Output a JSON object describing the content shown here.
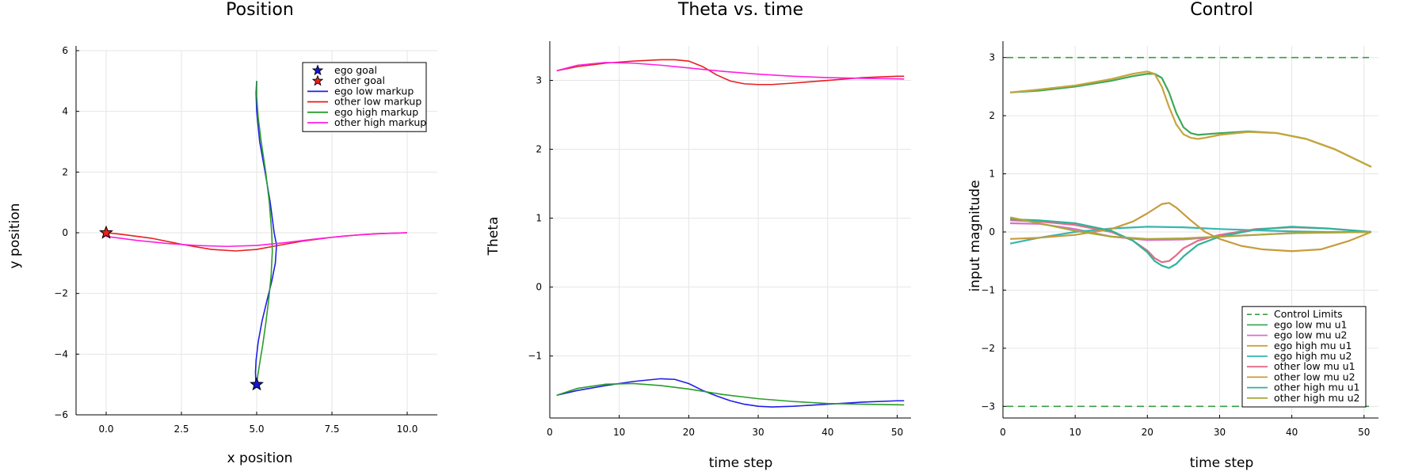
{
  "chart_data": [
    {
      "type": "line",
      "title": "Position",
      "xlabel": "x position",
      "ylabel": "y position",
      "xlim": [
        -1,
        11
      ],
      "ylim": [
        -6,
        6
      ],
      "xticks": [
        0.0,
        2.5,
        5.0,
        7.5,
        10.0
      ],
      "xtick_labels": [
        "0.0",
        "2.5",
        "5.0",
        "7.5",
        "10.0"
      ],
      "yticks": [
        -6,
        -4,
        -2,
        0,
        2,
        4,
        6
      ],
      "ytick_labels": [
        "−6",
        "−4",
        "−2",
        "0",
        "2",
        "4",
        "6"
      ],
      "grid": true,
      "legend_position": "top-right",
      "markers": [
        {
          "name": "ego goal",
          "x": 5.0,
          "y": -5.0,
          "color": "#1515d6",
          "shape": "star"
        },
        {
          "name": "other goal",
          "x": 0.0,
          "y": 0.0,
          "color": "#e8211b",
          "shape": "star"
        }
      ],
      "series": [
        {
          "name": "ego low markup",
          "color": "#1f1fe8",
          "x": [
            5.0,
            4.98,
            5.0,
            5.1,
            5.28,
            5.45,
            5.58,
            5.66,
            5.62,
            5.5,
            5.35,
            5.18,
            5.05,
            4.98,
            4.96,
            4.97,
            5.0
          ],
          "y": [
            5.0,
            4.6,
            4.0,
            3.0,
            2.0,
            1.0,
            0.0,
            -0.4,
            -1.0,
            -1.6,
            -2.2,
            -2.9,
            -3.6,
            -4.2,
            -4.6,
            -4.85,
            -5.0
          ]
        },
        {
          "name": "other low markup",
          "color": "#e81f1f",
          "x": [
            0.0,
            0.5,
            1.5,
            2.5,
            3.5,
            4.3,
            5.0,
            5.7,
            6.5,
            7.5,
            8.5,
            9.3,
            10.0
          ],
          "y": [
            0.0,
            -0.05,
            -0.18,
            -0.38,
            -0.55,
            -0.6,
            -0.55,
            -0.42,
            -0.28,
            -0.15,
            -0.06,
            -0.02,
            0.0
          ]
        },
        {
          "name": "ego high markup",
          "color": "#2a9d2a",
          "x": [
            5.0,
            5.0,
            5.05,
            5.15,
            5.3,
            5.42,
            5.5,
            5.52,
            5.48,
            5.4,
            5.3,
            5.2,
            5.1,
            5.03,
            5.0
          ],
          "y": [
            5.0,
            4.5,
            3.8,
            3.0,
            2.0,
            1.0,
            0.0,
            -0.6,
            -1.4,
            -2.2,
            -3.0,
            -3.7,
            -4.3,
            -4.75,
            -5.0
          ]
        },
        {
          "name": "other high markup",
          "color": "#ff1fe0",
          "x": [
            0.0,
            1.0,
            2.0,
            3.0,
            4.0,
            5.0,
            6.0,
            7.0,
            8.0,
            9.0,
            10.0
          ],
          "y": [
            -0.12,
            -0.25,
            -0.35,
            -0.42,
            -0.45,
            -0.42,
            -0.32,
            -0.2,
            -0.1,
            -0.03,
            0.0
          ]
        }
      ]
    },
    {
      "type": "line",
      "title": "Theta vs. time",
      "xlabel": "time step",
      "ylabel": "Theta",
      "xlim": [
        0,
        52
      ],
      "ylim": [
        -1.9,
        3.5
      ],
      "xticks": [
        0,
        10,
        20,
        30,
        40,
        50
      ],
      "xtick_labels": [
        "0",
        "10",
        "20",
        "30",
        "40",
        "50"
      ],
      "yticks": [
        -1,
        0,
        1,
        2,
        3
      ],
      "ytick_labels": [
        "−1",
        "0",
        "1",
        "2",
        "3"
      ],
      "grid": true,
      "series": [
        {
          "color": "#1f1fe8",
          "x": [
            1,
            4,
            8,
            12,
            16,
            18,
            20,
            22,
            24,
            26,
            28,
            30,
            32,
            35,
            40,
            45,
            50,
            51
          ],
          "y": [
            -1.57,
            -1.5,
            -1.43,
            -1.37,
            -1.33,
            -1.34,
            -1.4,
            -1.5,
            -1.58,
            -1.65,
            -1.7,
            -1.73,
            -1.74,
            -1.73,
            -1.7,
            -1.67,
            -1.65,
            -1.65
          ]
        },
        {
          "name": "",
          "color": "#2a9d2a",
          "x": [
            1,
            4,
            8,
            12,
            16,
            20,
            25,
            30,
            35,
            40,
            45,
            51
          ],
          "y": [
            -1.57,
            -1.47,
            -1.41,
            -1.4,
            -1.43,
            -1.48,
            -1.56,
            -1.62,
            -1.66,
            -1.69,
            -1.7,
            -1.71
          ]
        },
        {
          "color": "#e81f1f",
          "x": [
            1,
            4,
            8,
            12,
            16,
            18,
            20,
            22,
            24,
            26,
            28,
            30,
            32,
            35,
            40,
            45,
            50,
            51
          ],
          "y": [
            3.14,
            3.2,
            3.25,
            3.28,
            3.3,
            3.3,
            3.28,
            3.2,
            3.08,
            2.99,
            2.95,
            2.94,
            2.94,
            2.96,
            3.0,
            3.04,
            3.06,
            3.06
          ]
        },
        {
          "color": "#ff1fe0",
          "x": [
            1,
            4,
            8,
            12,
            16,
            20,
            25,
            30,
            35,
            40,
            45,
            51
          ],
          "y": [
            3.14,
            3.22,
            3.26,
            3.25,
            3.22,
            3.18,
            3.13,
            3.09,
            3.06,
            3.04,
            3.03,
            3.02
          ]
        }
      ]
    },
    {
      "type": "line",
      "title": "Control",
      "xlabel": "time step",
      "ylabel": "input magnitude",
      "xlim": [
        0,
        52
      ],
      "ylim": [
        -3.2,
        3.2
      ],
      "xticks": [
        0,
        10,
        20,
        30,
        40,
        50
      ],
      "xtick_labels": [
        "0",
        "10",
        "20",
        "30",
        "40",
        "50"
      ],
      "yticks": [
        -3,
        -2,
        -1,
        0,
        1,
        2,
        3
      ],
      "ytick_labels": [
        "−3",
        "−2",
        "−1",
        "0",
        "1",
        "2",
        "3"
      ],
      "grid": true,
      "legend_position": "bottom-right",
      "limits": {
        "name": "Control Limits",
        "color": "#3a9d48",
        "values": [
          3,
          -3
        ]
      },
      "series": [
        {
          "name": "ego low mu u1",
          "color": "#3ea85a",
          "x": [
            1,
            5,
            10,
            15,
            18,
            20,
            21,
            22,
            23,
            24,
            25,
            26,
            27,
            28,
            30,
            34,
            38,
            42,
            46,
            51
          ],
          "y": [
            2.4,
            2.43,
            2.5,
            2.6,
            2.68,
            2.72,
            2.72,
            2.65,
            2.4,
            2.05,
            1.8,
            1.7,
            1.67,
            1.68,
            1.7,
            1.73,
            1.7,
            1.6,
            1.42,
            1.12
          ]
        },
        {
          "name": "ego low mu u2",
          "color": "#d86fd2",
          "x": [
            1,
            5,
            10,
            15,
            20,
            25,
            30,
            35,
            40,
            45,
            51
          ],
          "y": [
            0.15,
            0.14,
            0.05,
            -0.08,
            -0.14,
            -0.13,
            -0.08,
            -0.05,
            -0.02,
            -0.01,
            0.0
          ]
        },
        {
          "name": "ego high mu u1",
          "color": "#c8a43c",
          "x": [
            1,
            5,
            10,
            15,
            18,
            20,
            21,
            22,
            23,
            24,
            25,
            26,
            27,
            28,
            30,
            34,
            38,
            42,
            46,
            51
          ],
          "y": [
            2.4,
            2.45,
            2.52,
            2.63,
            2.72,
            2.76,
            2.72,
            2.5,
            2.15,
            1.85,
            1.68,
            1.62,
            1.6,
            1.62,
            1.67,
            1.72,
            1.7,
            1.6,
            1.42,
            1.12
          ]
        },
        {
          "name": "ego high mu u2",
          "color": "#36b7b0",
          "x": [
            1,
            5,
            10,
            15,
            20,
            25,
            30,
            35,
            40,
            45,
            51
          ],
          "y": [
            -0.2,
            -0.1,
            0.0,
            0.06,
            0.09,
            0.08,
            0.05,
            0.03,
            0.01,
            0.0,
            0.0
          ]
        },
        {
          "name": "other low mu u1",
          "color": "#e26b8a",
          "x": [
            1,
            5,
            10,
            15,
            18,
            20,
            21,
            22,
            23,
            24,
            25,
            27,
            30,
            35,
            40,
            45,
            51
          ],
          "y": [
            0.2,
            0.18,
            0.12,
            0.0,
            -0.15,
            -0.32,
            -0.45,
            -0.52,
            -0.5,
            -0.4,
            -0.28,
            -0.15,
            -0.05,
            0.05,
            0.08,
            0.06,
            0.0
          ]
        },
        {
          "name": "other low mu u2",
          "color": "#c89b3c",
          "x": [
            1,
            5,
            10,
            15,
            18,
            20,
            22,
            23,
            24,
            26,
            28,
            30,
            33,
            36,
            40,
            44,
            48,
            51
          ],
          "y": [
            -0.12,
            -0.1,
            -0.05,
            0.05,
            0.18,
            0.32,
            0.48,
            0.5,
            0.42,
            0.2,
            0.0,
            -0.12,
            -0.24,
            -0.3,
            -0.33,
            -0.3,
            -0.15,
            0.0
          ]
        },
        {
          "name": "other high mu u1",
          "color": "#2fb39a",
          "x": [
            1,
            5,
            10,
            15,
            18,
            20,
            21,
            22,
            23,
            24,
            25,
            27,
            30,
            35,
            40,
            45,
            51
          ],
          "y": [
            0.22,
            0.2,
            0.15,
            0.02,
            -0.15,
            -0.35,
            -0.5,
            -0.58,
            -0.62,
            -0.55,
            -0.42,
            -0.22,
            -0.08,
            0.04,
            0.09,
            0.06,
            0.0
          ]
        },
        {
          "name": "other high mu u2",
          "color": "#a9a83a",
          "x": [
            1,
            5,
            10,
            15,
            20,
            25,
            30,
            35,
            40,
            45,
            51
          ],
          "y": [
            0.25,
            0.15,
            0.02,
            -0.08,
            -0.12,
            -0.11,
            -0.08,
            -0.05,
            -0.02,
            -0.01,
            0.0
          ]
        }
      ]
    }
  ]
}
